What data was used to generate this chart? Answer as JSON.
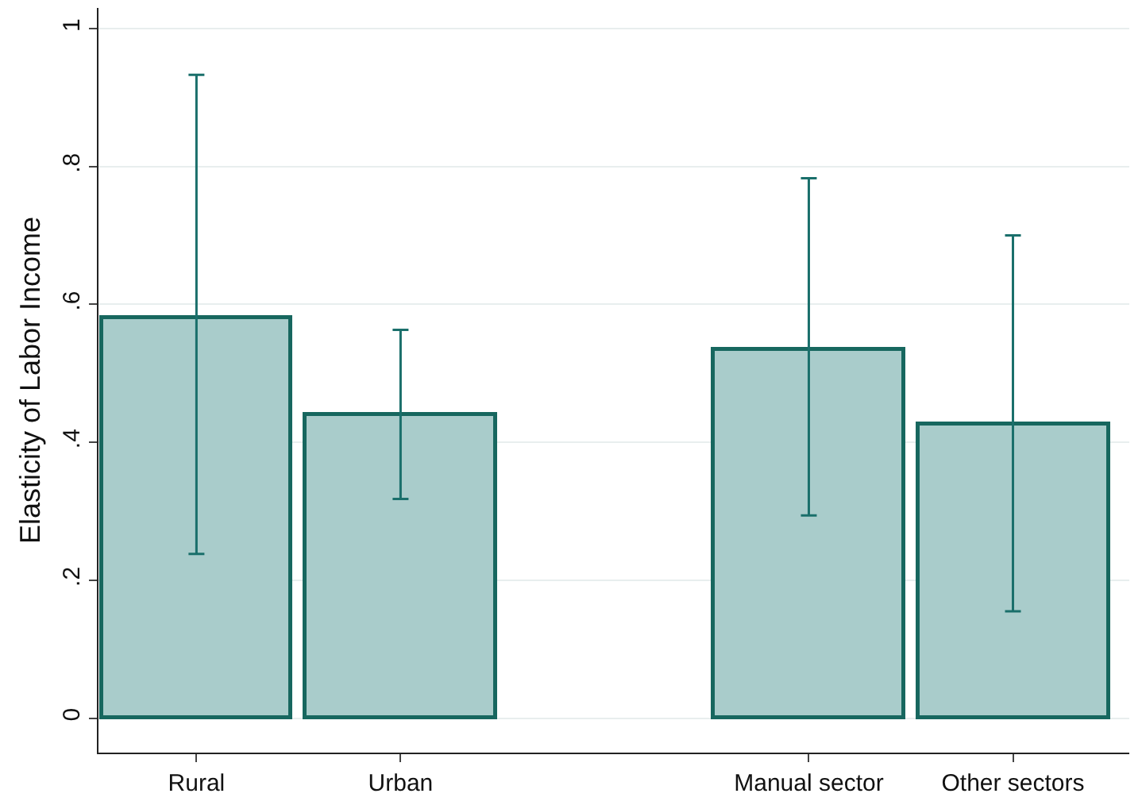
{
  "chart_data": {
    "type": "bar",
    "ylabel": "Elasticity of Labor Income",
    "categories": [
      "Rural",
      "Urban",
      null,
      "Manual sector",
      "Other sectors"
    ],
    "series": [
      {
        "color": "#a9cccb",
        "values": [
          0.58,
          0.44,
          null,
          0.535,
          0.427
        ],
        "errors": [
          [
            0.238,
            0.933
          ],
          [
            0.318,
            0.563
          ],
          null,
          [
            0.294,
            0.783
          ],
          [
            0.155,
            0.7
          ]
        ]
      }
    ],
    "ylim": [
      -0.05,
      1.03
    ],
    "yticks": [
      0,
      {
        "value": 0.2,
        "label": ".2"
      },
      {
        "value": 0.4,
        "label": ".4"
      },
      {
        "value": 0.6,
        "label": ".6"
      },
      {
        "value": 0.8,
        "label": ".8"
      },
      1
    ],
    "grid": "y",
    "legend": false
  }
}
